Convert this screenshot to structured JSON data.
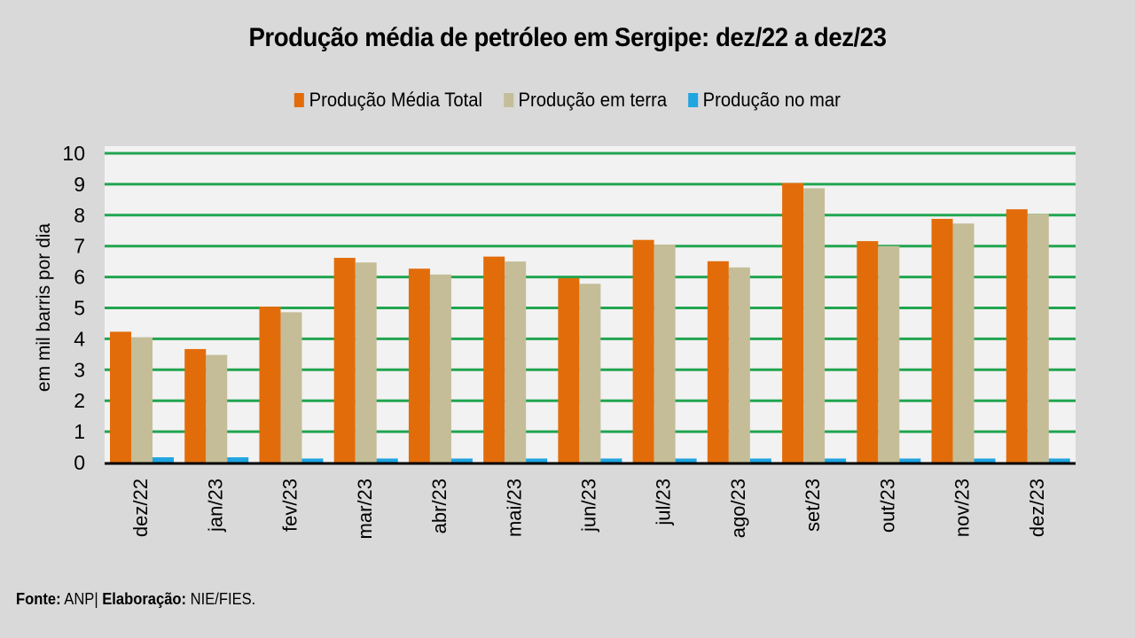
{
  "chart_data": {
    "type": "bar",
    "title": "Produção média de petróleo em Sergipe: dez/22 a dez/23",
    "xlabel": "",
    "ylabel": "em mil barris por dia",
    "ylim": [
      0,
      10
    ],
    "yticks": [
      0,
      1,
      2,
      3,
      4,
      5,
      6,
      7,
      8,
      9,
      10
    ],
    "grid": true,
    "legend_position": "top-center",
    "categories": [
      "dez/22",
      "jan/23",
      "fev/23",
      "mar/23",
      "abr/23",
      "mai/23",
      "jun/23",
      "jul/23",
      "ago/23",
      "set/23",
      "out/23",
      "nov/23",
      "dez/23"
    ],
    "series": [
      {
        "name": "Produção Média Total",
        "color": "#e36c0a",
        "values": [
          4.23,
          3.67,
          5.04,
          6.62,
          6.27,
          6.66,
          5.96,
          7.2,
          6.51,
          9.04,
          7.16,
          7.88,
          8.19
        ]
      },
      {
        "name": "Produção em terra",
        "color": "#c4bd97",
        "values": [
          4.05,
          3.48,
          4.86,
          6.47,
          6.08,
          6.5,
          5.78,
          7.05,
          6.31,
          8.87,
          7.0,
          7.73,
          8.04
        ]
      },
      {
        "name": "Produção no mar",
        "color": "#1fa5e0",
        "values": [
          0.17,
          0.17,
          0.13,
          0.13,
          0.13,
          0.13,
          0.13,
          0.13,
          0.13,
          0.13,
          0.13,
          0.13,
          0.13
        ]
      }
    ]
  },
  "colors": {
    "background": "#d9d9d9",
    "plot_background": "#f2f2f2",
    "gridline": "#21a550",
    "axis": "#000000"
  },
  "footer": {
    "source_label": "Fonte:",
    "source_value": "ANP|",
    "credit_label": "Elaboração:",
    "credit_value": "NIE/FIES."
  }
}
